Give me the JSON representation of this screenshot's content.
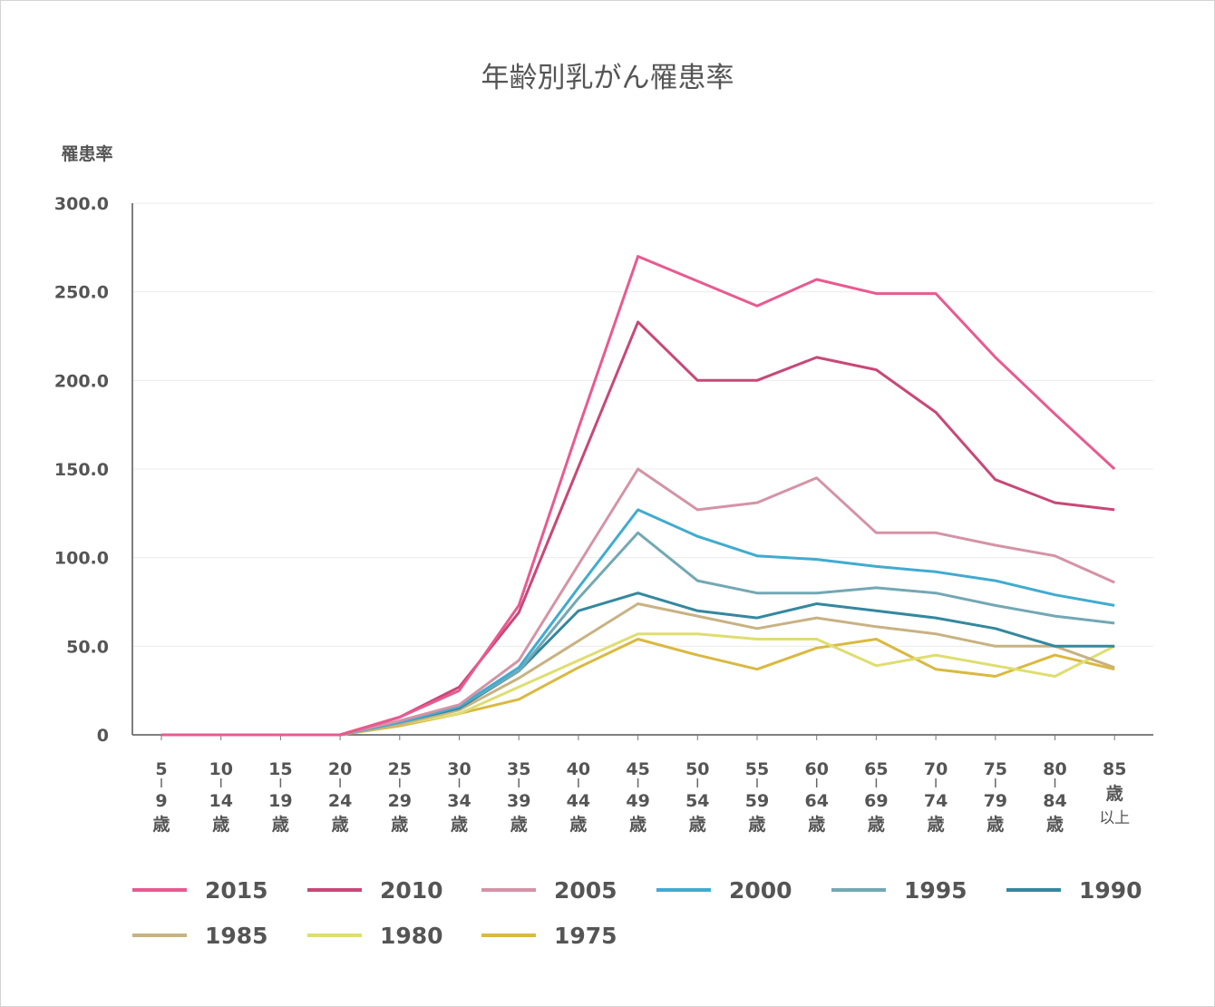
{
  "chart_data": {
    "type": "line",
    "title": "年齢別乳がん罹患率",
    "ylabel": "罹患率",
    "ylim": [
      0,
      300
    ],
    "y_ticks": [
      "0",
      "50.0",
      "100.0",
      "150.0",
      "200.0",
      "250.0",
      "300.0"
    ],
    "grid": "horizontal",
    "legend_position": "bottom",
    "categories": [
      [
        "5",
        "9",
        "歳"
      ],
      [
        "10",
        "14",
        "歳"
      ],
      [
        "15",
        "19",
        "歳"
      ],
      [
        "20",
        "24",
        "歳"
      ],
      [
        "25",
        "29",
        "歳"
      ],
      [
        "30",
        "34",
        "歳"
      ],
      [
        "35",
        "39",
        "歳"
      ],
      [
        "40",
        "44",
        "歳"
      ],
      [
        "45",
        "49",
        "歳"
      ],
      [
        "50",
        "54",
        "歳"
      ],
      [
        "55",
        "59",
        "歳"
      ],
      [
        "60",
        "64",
        "歳"
      ],
      [
        "65",
        "69",
        "歳"
      ],
      [
        "70",
        "74",
        "歳"
      ],
      [
        "75",
        "79",
        "歳"
      ],
      [
        "80",
        "84",
        "歳"
      ],
      [
        "85",
        "歳",
        "以上"
      ]
    ],
    "series": [
      {
        "name": "2015",
        "color": "#e85a90",
        "values": [
          0,
          0,
          0,
          0,
          10,
          25,
          73,
          173,
          270,
          256,
          242,
          257,
          249,
          249,
          213,
          181,
          150
        ]
      },
      {
        "name": "2010",
        "color": "#c84878",
        "values": [
          0,
          0,
          0,
          0,
          10,
          27,
          69,
          151,
          233,
          200,
          200,
          213,
          206,
          182,
          144,
          131,
          127
        ]
      },
      {
        "name": "2005",
        "color": "#d493a6",
        "values": [
          0,
          0,
          0,
          0,
          8,
          17,
          42,
          96,
          150,
          127,
          131,
          145,
          114,
          114,
          107,
          101,
          86
        ]
      },
      {
        "name": "2000",
        "color": "#41abd0",
        "values": [
          0,
          0,
          0,
          0,
          7,
          16,
          38,
          83,
          127,
          112,
          101,
          99,
          95,
          92,
          87,
          79,
          73
        ]
      },
      {
        "name": "1995",
        "color": "#73a8b4",
        "values": [
          0,
          0,
          0,
          0,
          7,
          16,
          36,
          77,
          114,
          87,
          80,
          80,
          83,
          80,
          73,
          67,
          63
        ]
      },
      {
        "name": "1990",
        "color": "#34889e",
        "values": [
          0,
          0,
          0,
          0,
          7,
          15,
          36,
          70,
          80,
          70,
          66,
          74,
          70,
          66,
          60,
          50,
          50
        ]
      },
      {
        "name": "1985",
        "color": "#c8b282",
        "values": [
          0,
          0,
          0,
          0,
          6,
          14,
          32,
          53,
          74,
          67,
          60,
          66,
          61,
          57,
          50,
          50,
          38
        ]
      },
      {
        "name": "1980",
        "color": "#dede70",
        "values": [
          0,
          0,
          0,
          0,
          6,
          12,
          27,
          42,
          57,
          57,
          54,
          54,
          39,
          45,
          39,
          33,
          50
        ]
      },
      {
        "name": "1975",
        "color": "#dab940",
        "values": [
          0,
          0,
          0,
          0,
          5,
          12,
          20,
          38,
          54,
          45,
          37,
          49,
          54,
          37,
          33,
          45,
          37
        ]
      }
    ]
  }
}
